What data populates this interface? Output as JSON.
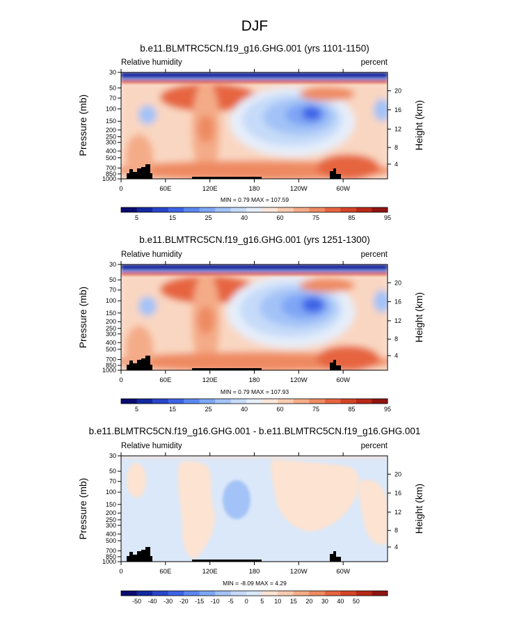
{
  "page_title": "DJF",
  "colors": {
    "rh_palette": [
      "#0a0a6e",
      "#1428a0",
      "#2846c8",
      "#3c64e6",
      "#5a87f0",
      "#7ea6f5",
      "#a3c2f7",
      "#c6dbf9",
      "#e6eefa",
      "#fbe6d9",
      "#f8cbb0",
      "#f4ac88",
      "#ee8a62",
      "#e66540",
      "#d54428",
      "#b82918",
      "#8f1410"
    ],
    "diff_palette": [
      "#0a0a6e",
      "#1428a0",
      "#2846c8",
      "#3c64e6",
      "#5a87f0",
      "#7ea6f5",
      "#a3c2f7",
      "#c6dbf9",
      "#dbe8f9",
      "#fde3d1",
      "#f8cbb0",
      "#f4ac88",
      "#ee8a62",
      "#e66540",
      "#d54428",
      "#b82918",
      "#8f1410"
    ],
    "topography": "#000000"
  },
  "chart_data": [
    {
      "type": "heatmap",
      "id": "panel1",
      "title": "b.e11.BLMTRC5CN.f19_g16.GHG.001 (yrs 1101-1150)",
      "left_label": "Relative humidity",
      "right_label": "percent",
      "xlabel": "",
      "ylabel": "Pressure (mb)",
      "right_ylabel": "Height (km)",
      "x_ticks": [
        "0",
        "60E",
        "120E",
        "180",
        "120W",
        "60W"
      ],
      "x_tick_lon": [
        0,
        60,
        120,
        180,
        240,
        300
      ],
      "x_range": [
        0,
        360
      ],
      "y_ticks": [
        "30",
        "50",
        "70",
        "100",
        "150",
        "200",
        "250",
        "300",
        "400",
        "500",
        "700",
        "850",
        "1000"
      ],
      "y_tick_p": [
        30,
        50,
        70,
        100,
        150,
        200,
        250,
        300,
        400,
        500,
        700,
        850,
        1000
      ],
      "height_ticks": [
        "20",
        "16",
        "12",
        "8",
        "4"
      ],
      "height_tick_p": [
        55,
        103,
        194,
        356,
        616
      ],
      "stats": "MIN =   0.79  MAX = 107.59",
      "colorbar_ticks": [
        "5",
        "15",
        "25",
        "40",
        "60",
        "75",
        "85",
        "95"
      ],
      "colorbar_levels": [
        5,
        10,
        15,
        20,
        25,
        30,
        40,
        50,
        60,
        65,
        70,
        75,
        80,
        85,
        90,
        95
      ]
    },
    {
      "type": "heatmap",
      "id": "panel2",
      "title": "b.e11.BLMTRC5CN.f19_g16.GHG.001 (yrs 1251-1300)",
      "left_label": "Relative humidity",
      "right_label": "percent",
      "xlabel": "",
      "ylabel": "Pressure (mb)",
      "right_ylabel": "Height (km)",
      "x_ticks": [
        "0",
        "60E",
        "120E",
        "180",
        "120W",
        "60W"
      ],
      "x_tick_lon": [
        0,
        60,
        120,
        180,
        240,
        300
      ],
      "x_range": [
        0,
        360
      ],
      "y_ticks": [
        "30",
        "50",
        "70",
        "100",
        "150",
        "200",
        "250",
        "300",
        "400",
        "500",
        "700",
        "850",
        "1000"
      ],
      "y_tick_p": [
        30,
        50,
        70,
        100,
        150,
        200,
        250,
        300,
        400,
        500,
        700,
        850,
        1000
      ],
      "height_ticks": [
        "20",
        "16",
        "12",
        "8",
        "4"
      ],
      "height_tick_p": [
        55,
        103,
        194,
        356,
        616
      ],
      "stats": "MIN =   0.79  MAX = 107.93",
      "colorbar_ticks": [
        "5",
        "15",
        "25",
        "40",
        "60",
        "75",
        "85",
        "95"
      ],
      "colorbar_levels": [
        5,
        10,
        15,
        20,
        25,
        30,
        40,
        50,
        60,
        65,
        70,
        75,
        80,
        85,
        90,
        95
      ]
    },
    {
      "type": "heatmap",
      "id": "panel3",
      "title": "b.e11.BLMTRC5CN.f19_g16.GHG.001 - b.e11.BLMTRC5CN.f19_g16.GHG.001",
      "left_label": "Relative humidity",
      "right_label": "percent",
      "xlabel": "",
      "ylabel": "Pressure (mb)",
      "right_ylabel": "Height (km)",
      "x_ticks": [
        "0",
        "60E",
        "120E",
        "180",
        "120W",
        "60W"
      ],
      "x_tick_lon": [
        0,
        60,
        120,
        180,
        240,
        300
      ],
      "x_range": [
        0,
        360
      ],
      "y_ticks": [
        "30",
        "50",
        "70",
        "100",
        "150",
        "200",
        "250",
        "300",
        "400",
        "500",
        "700",
        "850",
        "1000"
      ],
      "y_tick_p": [
        30,
        50,
        70,
        100,
        150,
        200,
        250,
        300,
        400,
        500,
        700,
        850,
        1000
      ],
      "height_ticks": [
        "20",
        "16",
        "12",
        "8",
        "4"
      ],
      "height_tick_p": [
        55,
        103,
        194,
        356,
        616
      ],
      "stats": "MIN =  -8.09  MAX =   4.29",
      "colorbar_ticks": [
        "-50",
        "-40",
        "-30",
        "-20",
        "-15",
        "-10",
        "-5",
        "0",
        "5",
        "10",
        "15",
        "20",
        "30",
        "40",
        "50"
      ],
      "colorbar_levels": [
        -50,
        -40,
        -30,
        -20,
        -15,
        -10,
        -5,
        0,
        5,
        10,
        15,
        20,
        30,
        40,
        50
      ]
    }
  ]
}
